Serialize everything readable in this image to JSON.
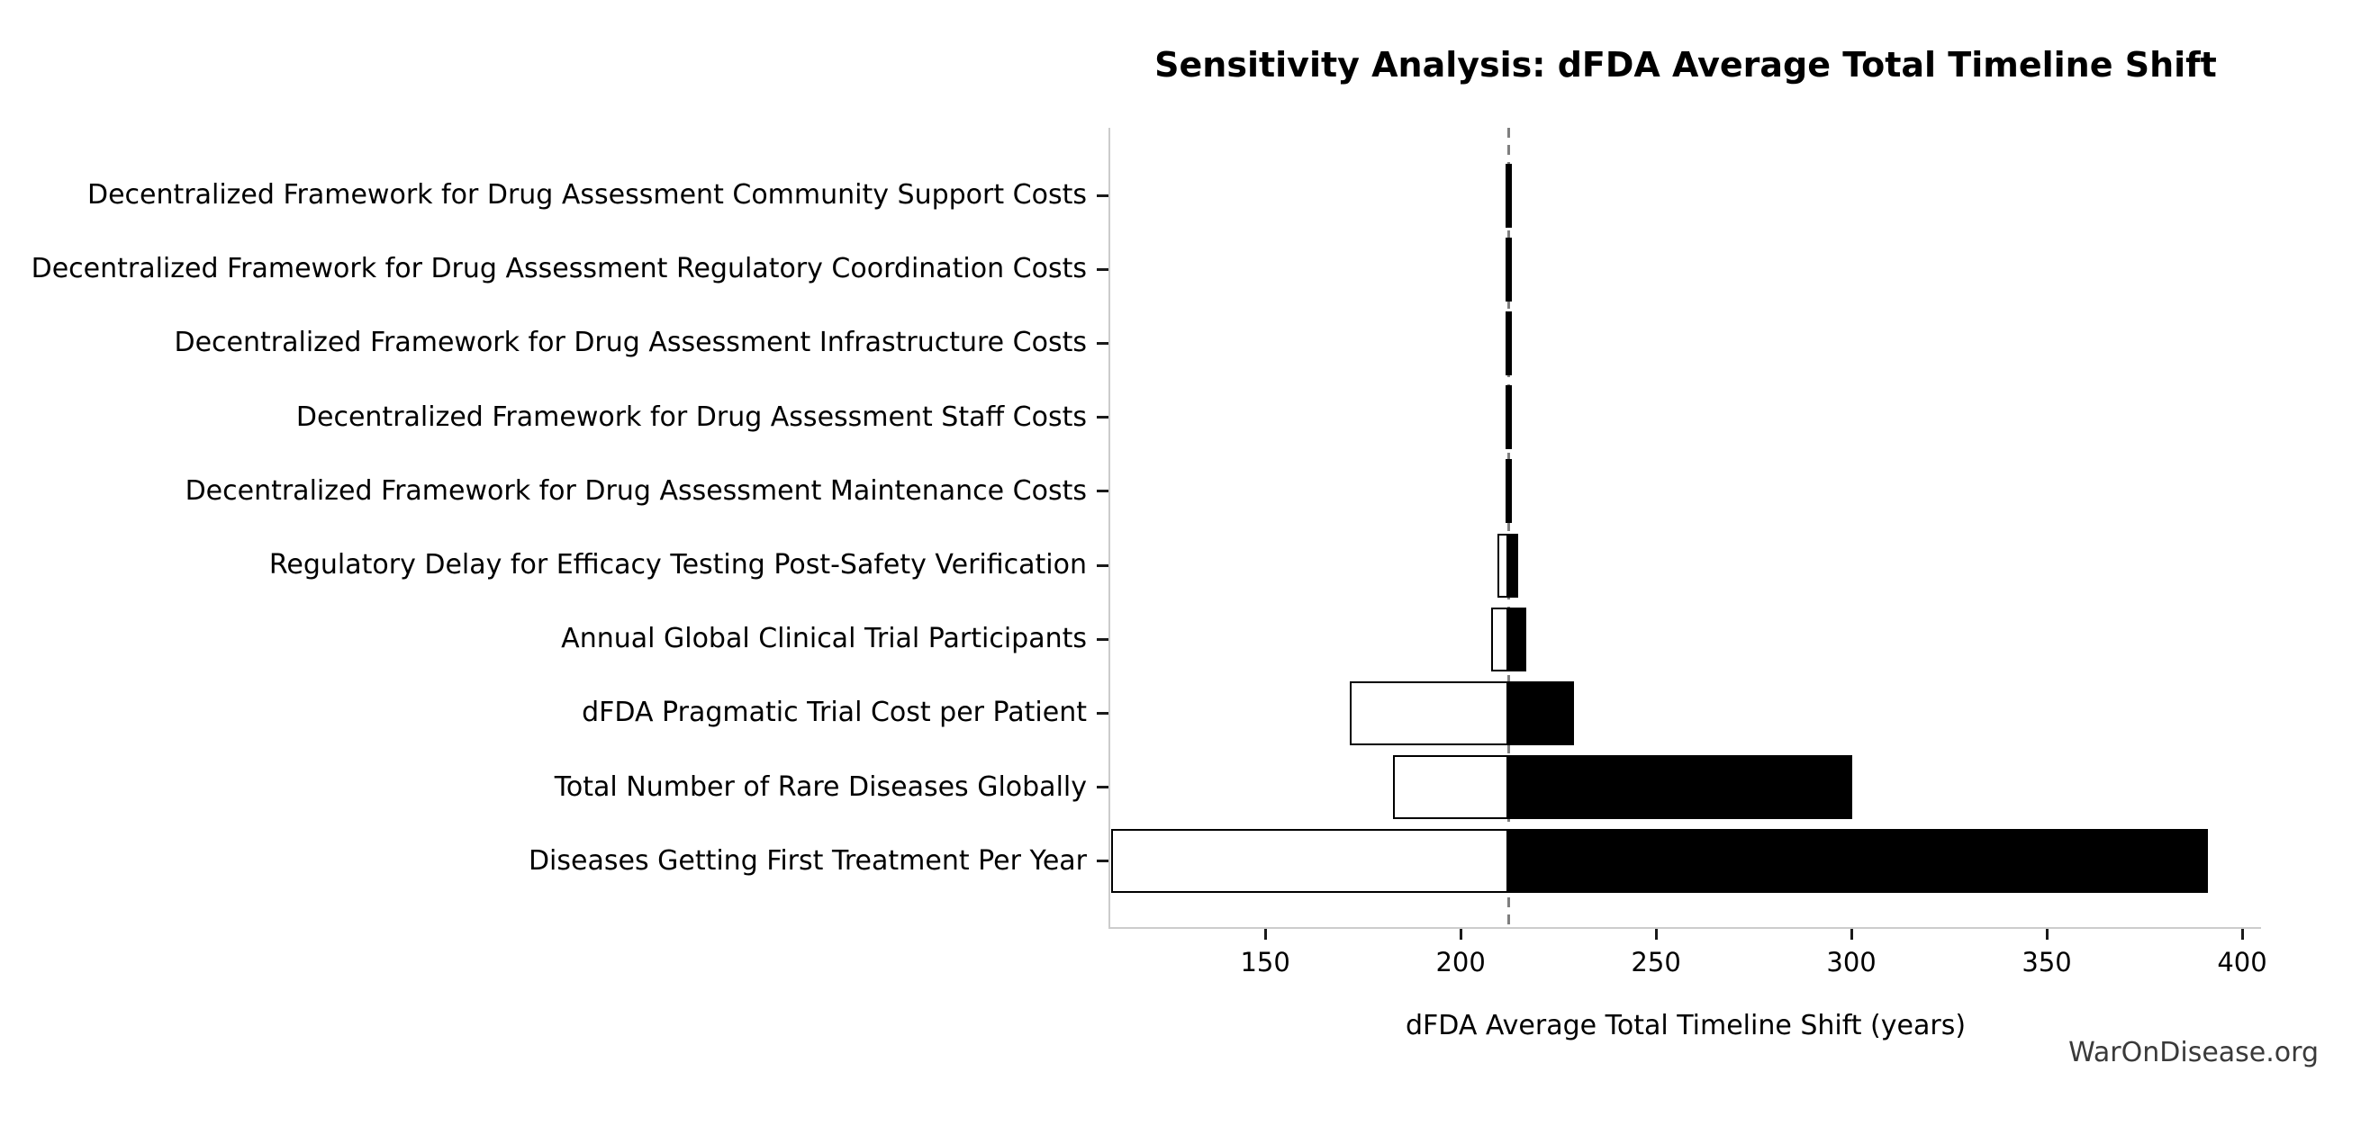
{
  "title": "Sensitivity Analysis: dFDA Average Total Timeline Shift",
  "watermark": "WarOnDisease.org",
  "colors": {
    "bar_high_fill": "#000000",
    "bar_low_fill": "#ffffff",
    "bar_edge": "#000000",
    "baseline_dashed": "#7f7f7f",
    "spine": "#cccccc",
    "tick": "#1a1a1a",
    "text": "#000000",
    "watermark_text": "#3a3a3a"
  },
  "chart_data": {
    "type": "bar",
    "subtype": "tornado-sensitivity",
    "title": "Sensitivity Analysis: dFDA Average Total Timeline Shift",
    "xlabel": "dFDA Average Total Timeline Shift (years)",
    "ylabel": "",
    "base_value": 212.2,
    "xlim": [
      110.1,
      404.6
    ],
    "x_ticks": [
      150,
      200,
      250,
      300,
      350,
      400
    ],
    "grid": "off",
    "legend": "none",
    "orientation": "horizontal",
    "note_low_bars": "white fill with black edge, span low-to-base",
    "note_high_bars": "solid black, span base-to-high",
    "rows": [
      {
        "label": "Decentralized Framework for Drug Assessment Community Support Costs",
        "low": 211.4,
        "high": 213.0
      },
      {
        "label": "Decentralized Framework for Drug Assessment Regulatory Coordination Costs",
        "low": 211.4,
        "high": 213.0
      },
      {
        "label": "Decentralized Framework for Drug Assessment Infrastructure Costs",
        "low": 211.4,
        "high": 213.0
      },
      {
        "label": "Decentralized Framework for Drug Assessment Staff Costs",
        "low": 211.4,
        "high": 213.0
      },
      {
        "label": "Decentralized Framework for Drug Assessment Maintenance Costs",
        "low": 211.4,
        "high": 213.0
      },
      {
        "label": "Regulatory Delay for Efficacy Testing Post-Safety Verification",
        "low": 209.5,
        "high": 214.8
      },
      {
        "label": "Annual Global Clinical Trial Participants",
        "low": 207.8,
        "high": 216.8
      },
      {
        "label": "dFDA Pragmatic Trial Cost per Patient",
        "low": 171.7,
        "high": 229.1
      },
      {
        "label": "Total Number of Rare Diseases Globally",
        "low": 182.7,
        "high": 300.2
      },
      {
        "label": "Diseases Getting First Treatment Per Year",
        "low": 110.6,
        "high": 391.2
      }
    ]
  }
}
